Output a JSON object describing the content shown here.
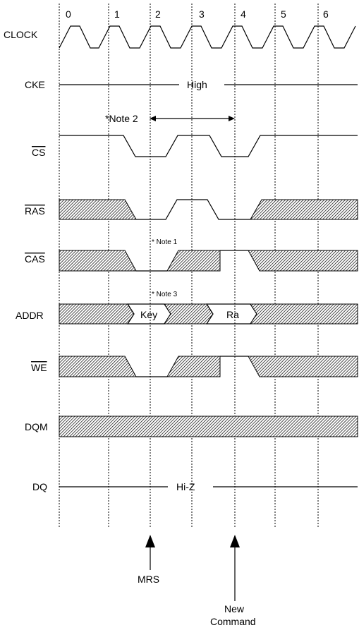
{
  "cycle_numbers": [
    "0",
    "1",
    "2",
    "3",
    "4",
    "5",
    "6"
  ],
  "signals": {
    "clock": "CLOCK",
    "cke": "CKE",
    "cs": "CS",
    "ras": "RAS",
    "cas": "CAS",
    "addr": "ADDR",
    "we": "WE",
    "dqm": "DQM",
    "dq": "DQ"
  },
  "overlined_signals": [
    "CS",
    "RAS",
    "CAS",
    "WE"
  ],
  "cke_level": "High",
  "dq_level": "Hi-Z",
  "notes": {
    "note2": "*Note 2",
    "note1": "* Note 1",
    "note3": "* Note 3"
  },
  "addr_values": {
    "key": "Key",
    "ra": "Ra"
  },
  "markers": {
    "mrs": "MRS",
    "new_command_line1": "New",
    "new_command_line2": "Command"
  }
}
